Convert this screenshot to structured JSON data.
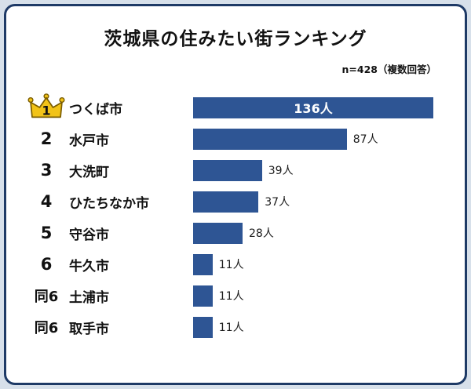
{
  "card": {
    "title": "茨城県の住みたい街ランキング",
    "sample_note": "n=428（複数回答）"
  },
  "colors": {
    "bar": "#2e5594",
    "card_border": "#1e3a66",
    "page_background": "#d7e0ea",
    "crown_gold": "#f2c318"
  },
  "chart_data": {
    "type": "bar",
    "orientation": "horizontal",
    "title": "茨城県の住みたい街ランキング",
    "subtitle": "n=428（複数回答）",
    "categories": [
      "つくば市",
      "水戸市",
      "大洗町",
      "ひたちなか市",
      "守谷市",
      "牛久市",
      "土浦市",
      "取手市"
    ],
    "ranks": [
      "1",
      "2",
      "3",
      "4",
      "5",
      "6",
      "同6",
      "同6"
    ],
    "values": [
      136,
      87,
      39,
      37,
      28,
      11,
      11,
      11
    ],
    "value_labels": [
      "136人",
      "87人",
      "39人",
      "37人",
      "28人",
      "11人",
      "11人",
      "11人"
    ],
    "max_value": 136,
    "unit": "人",
    "legend": false,
    "grid": false,
    "first_value_label_inside_bar": true,
    "rank1_icon": "crown-icon"
  }
}
